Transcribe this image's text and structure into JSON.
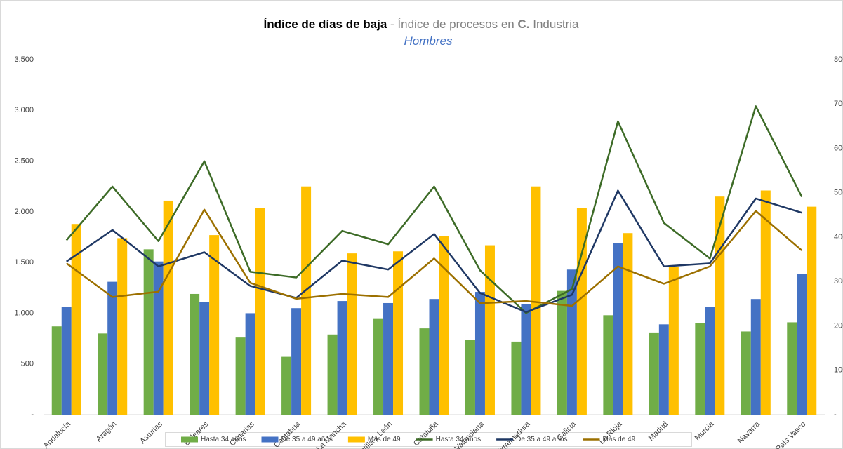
{
  "chart_data": {
    "type": "bar_line",
    "title": {
      "main": "Índice de días de baja",
      "separator": "-",
      "rest": "Índice de procesos en",
      "bold": "C.",
      "end": "Industria"
    },
    "subtitle": "Hombres",
    "categories": [
      "Andalucía",
      "Aragón",
      "Asturias",
      "Baleares",
      "Canarias",
      "Cantabria",
      "C. La Mancha",
      "Castilla y León",
      "Cataluña",
      "C. Valenciana",
      "Extremadura",
      "Galicia",
      "La Rioja",
      "Madrid",
      "Murcia",
      "Navarra",
      "País Vasco"
    ],
    "series": [
      {
        "name": "Hasta 34 años",
        "type": "bar",
        "color": "#70ad47",
        "values": [
          870,
          800,
          1630,
          1190,
          760,
          570,
          790,
          950,
          850,
          740,
          720,
          1220,
          980,
          810,
          900,
          820,
          910
        ]
      },
      {
        "name": "De 35 a 49 años",
        "type": "bar",
        "color": "#4472c4",
        "values": [
          1060,
          1310,
          1510,
          1110,
          1000,
          1050,
          1120,
          1100,
          1140,
          1210,
          1090,
          1430,
          1690,
          890,
          1060,
          1140,
          1390
        ]
      },
      {
        "name": "Más de 49",
        "type": "bar",
        "color": "#ffc000",
        "values": [
          1880,
          1740,
          2110,
          1770,
          2040,
          2250,
          1590,
          1610,
          1760,
          1670,
          2250,
          2040,
          1790,
          1460,
          2150,
          2210,
          2050
        ]
      },
      {
        "name": "Hasta 34 años",
        "type": "line",
        "axis": "y2",
        "color": "#3d6b27",
        "values": [
          393,
          514,
          391,
          571,
          322,
          309,
          414,
          384,
          514,
          325,
          229,
          283,
          661,
          432,
          352,
          695,
          491
        ]
      },
      {
        "name": "De 35 a 49 años",
        "type": "line",
        "axis": "y2",
        "color": "#1f3864",
        "values": [
          345,
          416,
          334,
          366,
          290,
          263,
          347,
          327,
          407,
          274,
          231,
          270,
          505,
          334,
          341,
          487,
          455
        ]
      },
      {
        "name": "Más de 49",
        "type": "line",
        "axis": "y2",
        "color": "#9c7000",
        "values": [
          341,
          265,
          277,
          462,
          297,
          261,
          272,
          265,
          352,
          251,
          256,
          245,
          334,
          295,
          334,
          459,
          370
        ]
      }
    ],
    "ylim": [
      0,
      3500
    ],
    "yticks": [
      {
        "value": 0,
        "label": "-"
      },
      500,
      {
        "value": 1000,
        "label": "1.000"
      },
      {
        "value": 1500,
        "label": "1.500"
      },
      {
        "value": 2000,
        "label": "2.000"
      },
      {
        "value": 2500,
        "label": "2.500"
      },
      {
        "value": 3000,
        "label": "3.000"
      },
      {
        "value": 3500,
        "label": "3.500"
      }
    ],
    "y2lim": [
      0,
      800
    ],
    "y2ticks": [
      {
        "value": 0,
        "label": "-"
      },
      100,
      200,
      300,
      400,
      500,
      600,
      700,
      800
    ],
    "grid": false,
    "legend": "bottom"
  }
}
